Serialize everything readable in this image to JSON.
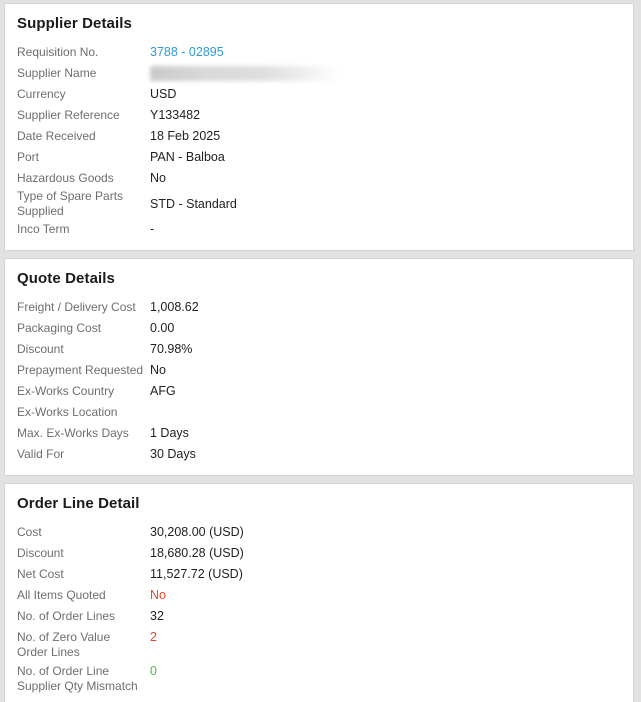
{
  "colors": {
    "link": "#2e9ad6",
    "red": "#e8472f",
    "green": "#56b44c",
    "page_background": "#e2e2e2"
  },
  "sections": [
    {
      "title": "Supplier Details",
      "rows": [
        {
          "label": "Requisition No.",
          "value": "3788 - 02895",
          "type": "link"
        },
        {
          "label": "Supplier Name",
          "value": "",
          "type": "redacted"
        },
        {
          "label": "Currency",
          "value": "USD"
        },
        {
          "label": "Supplier Reference",
          "value": "Y133482"
        },
        {
          "label": "Date Received",
          "value": "18 Feb 2025"
        },
        {
          "label": "Port",
          "value": "PAN - Balboa"
        },
        {
          "label": "Hazardous Goods",
          "value": "No"
        },
        {
          "label": "Type of Spare Parts Supplied",
          "value": "STD - Standard"
        },
        {
          "label": "Inco Term",
          "value": "-"
        }
      ]
    },
    {
      "title": "Quote Details",
      "rows": [
        {
          "label": "Freight / Delivery Cost",
          "value": "1,008.62"
        },
        {
          "label": "Packaging Cost",
          "value": "0.00"
        },
        {
          "label": "Discount",
          "value": "70.98%"
        },
        {
          "label": "Prepayment Requested",
          "value": "No"
        },
        {
          "label": "Ex-Works Country",
          "value": "AFG"
        },
        {
          "label": "Ex-Works Location",
          "value": ""
        },
        {
          "label": "Max. Ex-Works Days",
          "value": "1 Days"
        },
        {
          "label": "Valid For",
          "value": "30 Days"
        }
      ]
    },
    {
      "title": "Order Line Detail",
      "rows": [
        {
          "label": "Cost",
          "value": "30,208.00 (USD)"
        },
        {
          "label": "Discount",
          "value": "18,680.28 (USD)"
        },
        {
          "label": "Net Cost",
          "value": "11,527.72 (USD)"
        },
        {
          "label": "All Items Quoted",
          "value": "No",
          "color": "red"
        },
        {
          "label": "No. of Order Lines",
          "value": "32"
        },
        {
          "label": "No. of Zero Value Order Lines",
          "value": "2",
          "color": "red",
          "align": "top"
        },
        {
          "label": "No. of Order Line Supplier Qty Mismatch",
          "value": "0",
          "color": "green",
          "align": "top"
        }
      ]
    }
  ]
}
